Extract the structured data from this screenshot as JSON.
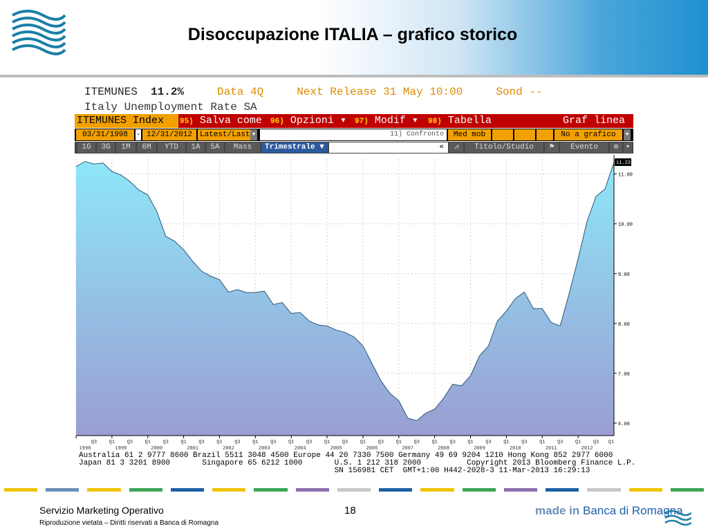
{
  "header": {
    "title": "Disoccupazione ITALIA – grafico storico"
  },
  "terminal": {
    "ticker": "ITEMUNES",
    "last_value": "11.2%",
    "data_label": "Data 4Q",
    "next_release": "Next Release 31 May 10:00",
    "survey": "Sond --",
    "description": "Italy Unemployment Rate SA",
    "index_label": "ITEMUNES Index",
    "menu": [
      {
        "num": "95)",
        "label": "Salva come"
      },
      {
        "num": "96)",
        "label": "Opzioni"
      },
      {
        "num": "97)",
        "label": "Modif"
      },
      {
        "num": "98)",
        "label": "Tabella"
      }
    ],
    "chart_type_label": "Graf linea",
    "start_date": "03/31/1998",
    "end_date": "12/31/2012",
    "range_select": "Latest/Last",
    "compare_label": "11) Confronto",
    "moving_avg": "Med mob",
    "info_label": "No a grafico info",
    "periods": [
      "1G",
      "3G",
      "1M",
      "6M",
      "YTD",
      "1A",
      "5A",
      "Mass"
    ],
    "frequency": "Trimestrale ▼",
    "collapse": "«",
    "title_study": "Titolo/Studio",
    "event": "Evento",
    "footer_lines": [
      "Australia 61 2 9777 8600 Brazil 5511 3048 4500 Europe 44 20 7330 7500 Germany 49 69 9204 1210 Hong Kong 852 2977 6000",
      "Japan 81 3 3201 8900       Singapore 65 6212 1000       U.S. 1 212 318 2000          Copyright 2013 Bloomberg Finance L.P.",
      "                                                        SN 156981 CET  GMT+1:00 H442-2028-3 11-Mar-2013 16:29:13"
    ]
  },
  "chart_data": {
    "type": "area",
    "title": "",
    "xlabel": "",
    "ylabel": "",
    "ylim": [
      5.75,
      11.3
    ],
    "y_ticks": [
      "11.00",
      "10.00",
      "9.00",
      "8.00",
      "7.00",
      "6.00"
    ],
    "last_value_label": "11.23",
    "x_years": [
      "1998",
      "1999",
      "2000",
      "2001",
      "2002",
      "2003",
      "2004",
      "2005",
      "2006",
      "2007",
      "2008",
      "2009",
      "2010",
      "2011",
      "2012"
    ],
    "x_quarter_labels": [
      "Q3",
      "Q1",
      "Q3"
    ],
    "series": [
      {
        "values": [
          [
            1998.0,
            11.15
          ],
          [
            1998.25,
            11.25
          ],
          [
            1998.5,
            11.2
          ],
          [
            1998.75,
            11.22
          ],
          [
            1999.0,
            11.05
          ],
          [
            1999.25,
            10.98
          ],
          [
            1999.5,
            10.85
          ],
          [
            1999.75,
            10.68
          ],
          [
            2000.0,
            10.58
          ],
          [
            2000.25,
            10.25
          ],
          [
            2000.5,
            9.75
          ],
          [
            2000.75,
            9.65
          ],
          [
            2001.0,
            9.48
          ],
          [
            2001.25,
            9.25
          ],
          [
            2001.5,
            9.05
          ],
          [
            2001.75,
            8.95
          ],
          [
            2002.0,
            8.88
          ],
          [
            2002.25,
            8.63
          ],
          [
            2002.5,
            8.68
          ],
          [
            2002.75,
            8.62
          ],
          [
            2003.0,
            8.62
          ],
          [
            2003.25,
            8.65
          ],
          [
            2003.5,
            8.38
          ],
          [
            2003.75,
            8.42
          ],
          [
            2004.0,
            8.2
          ],
          [
            2004.25,
            8.22
          ],
          [
            2004.5,
            8.05
          ],
          [
            2004.75,
            7.97
          ],
          [
            2005.0,
            7.95
          ],
          [
            2005.25,
            7.87
          ],
          [
            2005.5,
            7.82
          ],
          [
            2005.75,
            7.73
          ],
          [
            2006.0,
            7.55
          ],
          [
            2006.25,
            7.2
          ],
          [
            2006.5,
            6.85
          ],
          [
            2006.75,
            6.6
          ],
          [
            2007.0,
            6.45
          ],
          [
            2007.25,
            6.1
          ],
          [
            2007.5,
            6.05
          ],
          [
            2007.75,
            6.2
          ],
          [
            2008.0,
            6.28
          ],
          [
            2008.25,
            6.5
          ],
          [
            2008.5,
            6.78
          ],
          [
            2008.75,
            6.75
          ],
          [
            2009.0,
            6.95
          ],
          [
            2009.25,
            7.35
          ],
          [
            2009.5,
            7.55
          ],
          [
            2009.75,
            8.05
          ],
          [
            2010.0,
            8.25
          ],
          [
            2010.25,
            8.5
          ],
          [
            2010.5,
            8.63
          ],
          [
            2010.75,
            8.3
          ],
          [
            2011.0,
            8.3
          ],
          [
            2011.25,
            8.02
          ],
          [
            2011.5,
            7.95
          ],
          [
            2011.75,
            8.6
          ],
          [
            2012.0,
            9.3
          ],
          [
            2012.25,
            10.05
          ],
          [
            2012.5,
            10.55
          ],
          [
            2012.75,
            10.7
          ],
          [
            2013.0,
            11.23
          ]
        ]
      }
    ],
    "colors": {
      "area_top": "#8ee6f8",
      "area_bottom": "#9a9ed2",
      "line": "#2a5577"
    }
  },
  "footer": {
    "left": "Servizio Marketing Operativo",
    "left_small": "Riproduzione vietata – Diritti riservati a Banca di Romagna",
    "page": "18",
    "brand_prefix": "made in",
    "brand_name": "Banca di Romagna"
  }
}
